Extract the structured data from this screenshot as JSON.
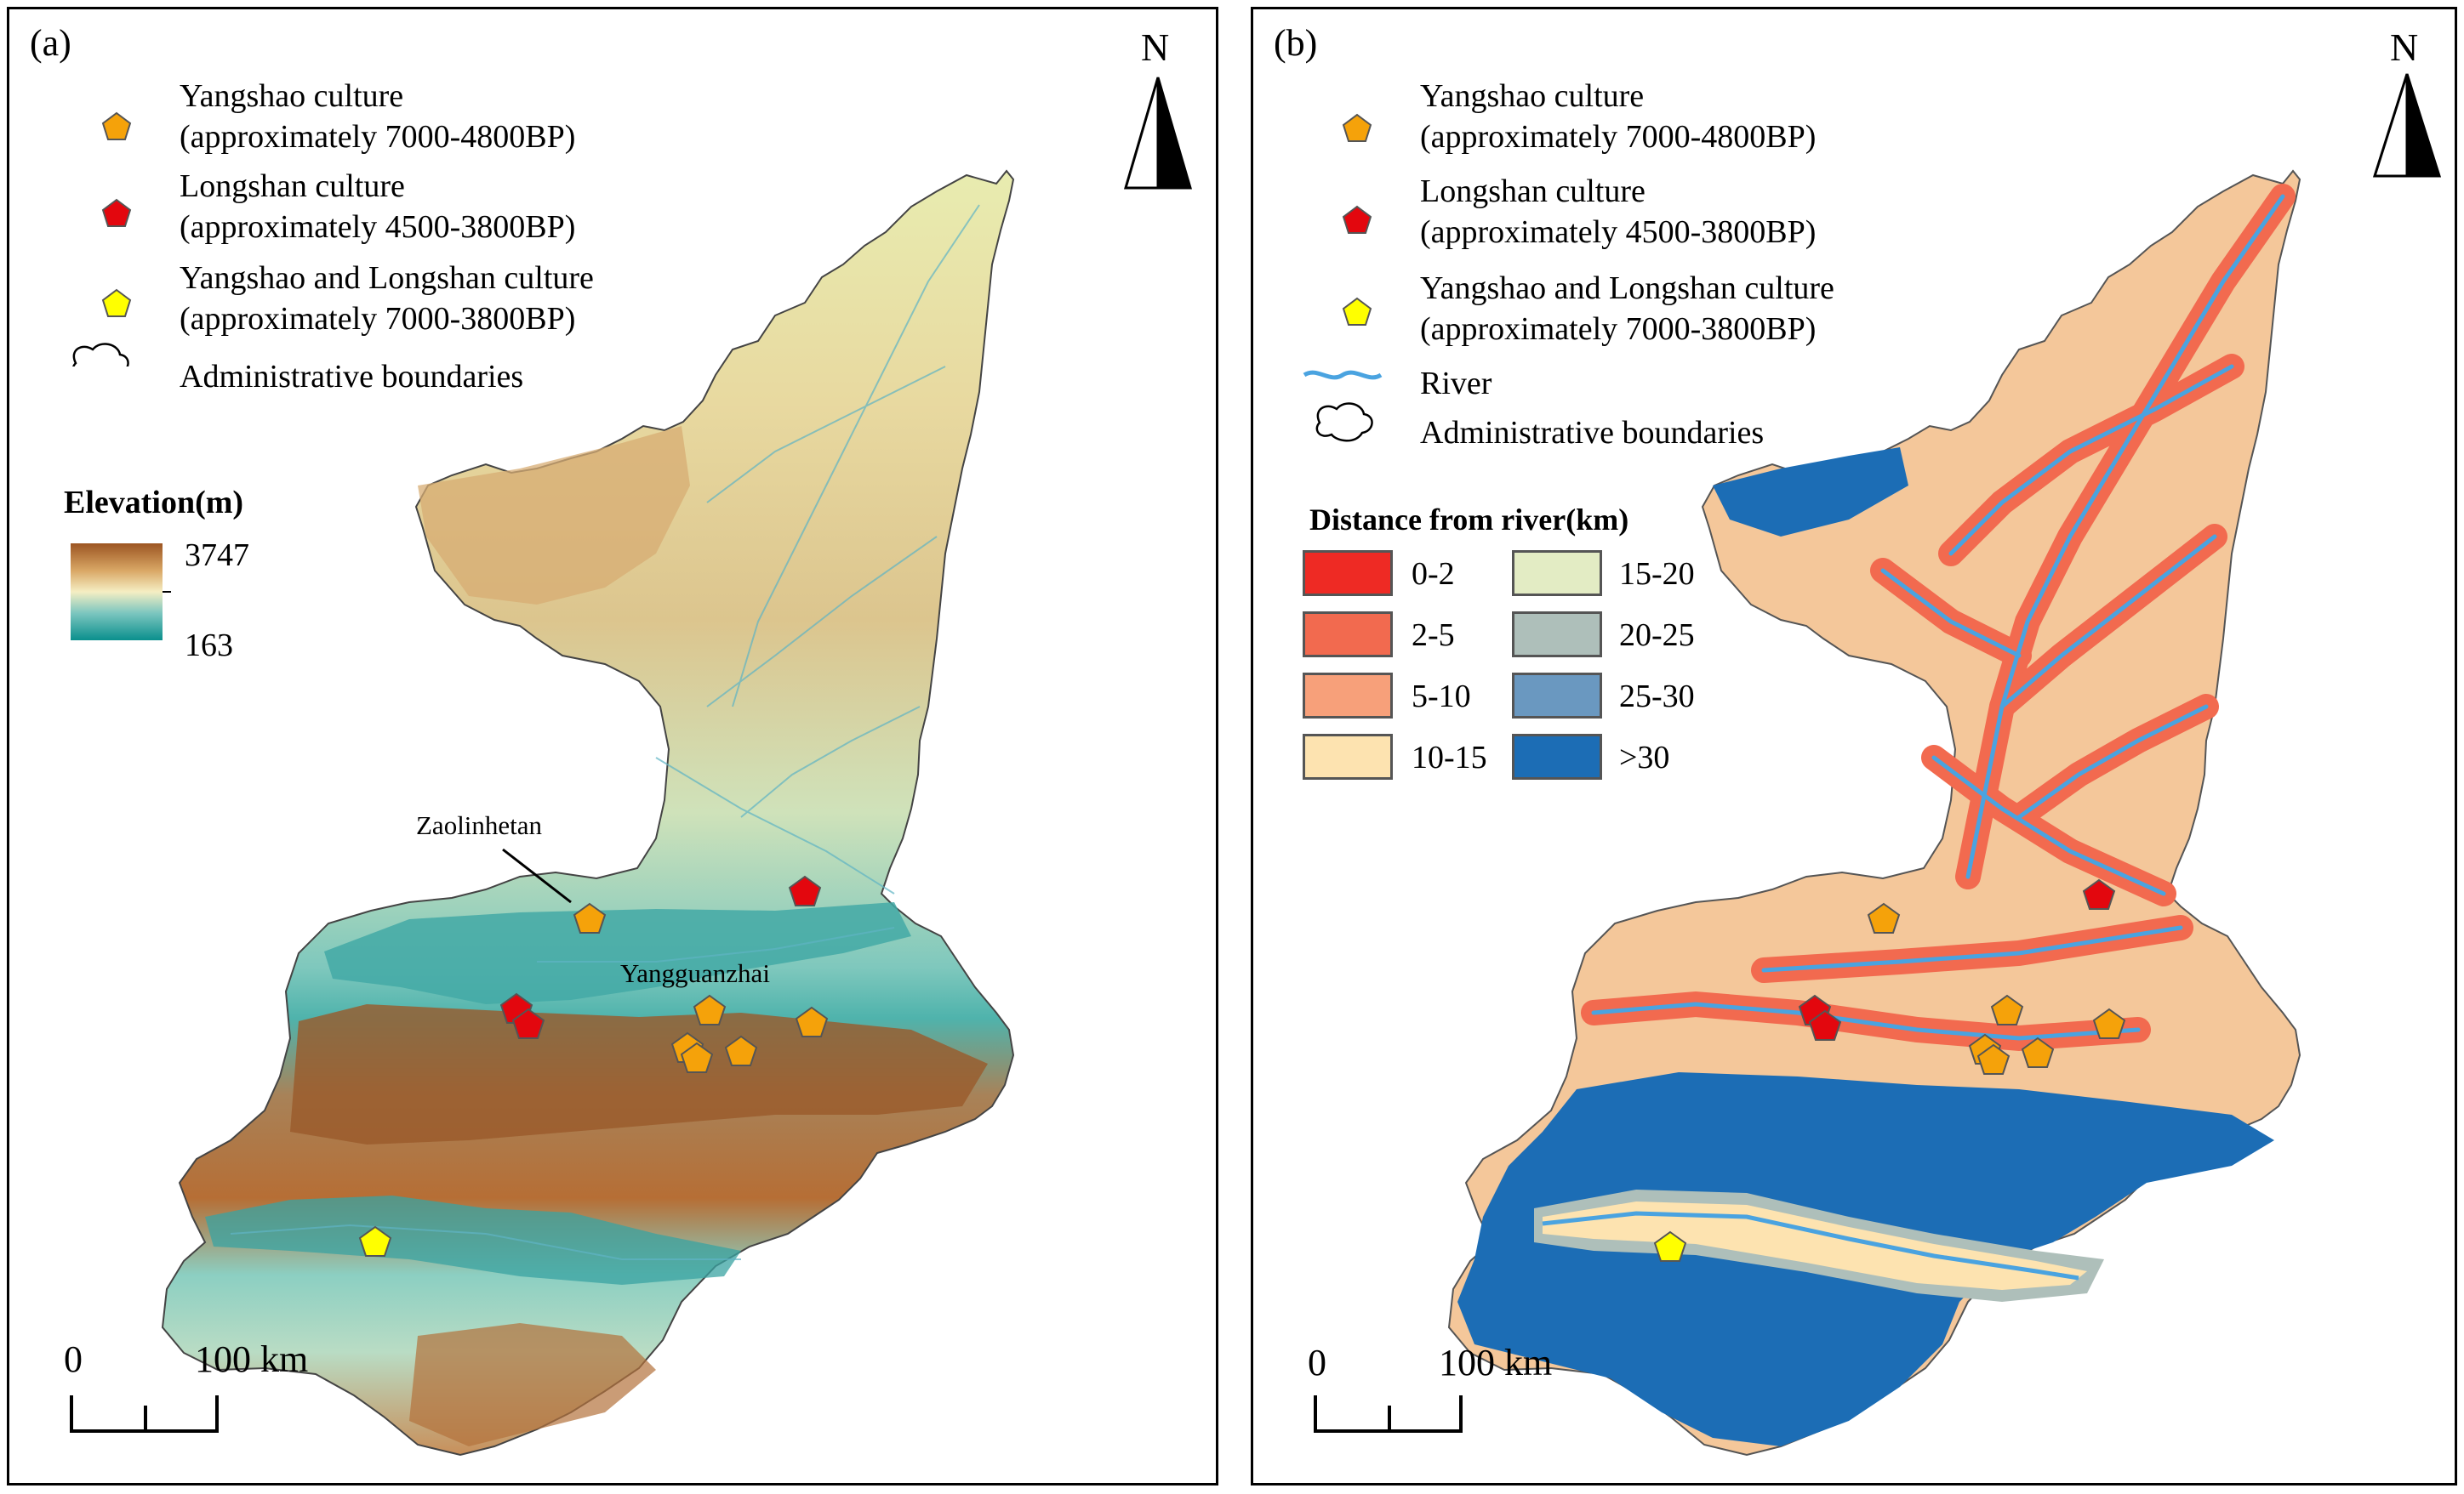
{
  "panel_a": {
    "tag": "(a)",
    "north": "N",
    "legend": {
      "yangshao_name": "Yangshao culture",
      "yangshao_period": "(approximately 7000-4800BP)",
      "longshan_name": "Longshan culture",
      "longshan_period": "(approximately 4500-3800BP)",
      "both_name": "Yangshao and Longshan culture",
      "both_period": "(approximately 7000-3800BP)",
      "boundary": "Administrative boundaries"
    },
    "elevation": {
      "title": "Elevation(m)",
      "max": "3747",
      "min": "163"
    },
    "places": {
      "zaolinhetan": "Zaolinhetan",
      "yangguanzhai": "Yangguanzhai"
    },
    "scale": {
      "zero": "0",
      "distance": "100 km"
    }
  },
  "panel_b": {
    "tag": "(b)",
    "north": "N",
    "legend": {
      "yangshao_name": "Yangshao culture",
      "yangshao_period": "(approximately 7000-4800BP)",
      "longshan_name": "Longshan culture",
      "longshan_period": "(approximately 4500-3800BP)",
      "both_name": "Yangshao and Longshan culture",
      "both_period": "(approximately 7000-3800BP)",
      "river": "River",
      "boundary": "Administrative boundaries"
    },
    "distance": {
      "title": "Distance from river(km)",
      "classes": [
        {
          "label": "0-2",
          "color": "#ee2a24"
        },
        {
          "label": "2-5",
          "color": "#f26a4f"
        },
        {
          "label": "5-10",
          "color": "#f7a07a"
        },
        {
          "label": "10-15",
          "color": "#fde3b0"
        },
        {
          "label": "15-20",
          "color": "#e3ecc4"
        },
        {
          "label": "20-25",
          "color": "#aebfba"
        },
        {
          "label": "25-30",
          "color": "#6a98c0"
        },
        {
          "label": ">30",
          "color": "#1c6db5"
        }
      ]
    },
    "scale": {
      "zero": "0",
      "distance": "100 km"
    }
  },
  "colors": {
    "yangshao_marker": "#f5a20a",
    "longshan_marker": "#e3070e",
    "both_marker": "#ffff00",
    "river": "#4aa3e0"
  }
}
